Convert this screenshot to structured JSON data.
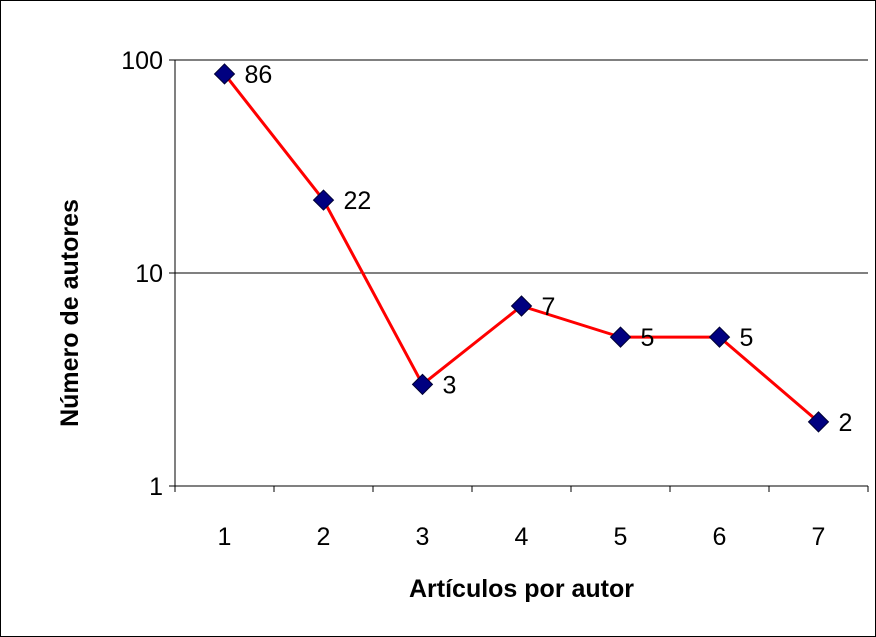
{
  "chart_data": {
    "type": "line",
    "xlabel": "Artículos por autor",
    "ylabel": "Número de autores",
    "x_scale": "linear",
    "y_scale": "log",
    "ylim": [
      1,
      100
    ],
    "y_ticks": [
      1,
      10,
      100
    ],
    "y_tick_labels": [
      "1",
      "10",
      "100"
    ],
    "categories": [
      "1",
      "2",
      "3",
      "4",
      "5",
      "6",
      "7"
    ],
    "series": [
      {
        "values": [
          86,
          22,
          3,
          7,
          5,
          5,
          2
        ],
        "data_labels": [
          "86",
          "22",
          "3",
          "7",
          "5",
          "5",
          "2"
        ],
        "line_color": "#ff0000",
        "marker": "diamond",
        "marker_color": "#000080"
      }
    ],
    "grid": "horizontal major gridlines",
    "legend": "none"
  }
}
